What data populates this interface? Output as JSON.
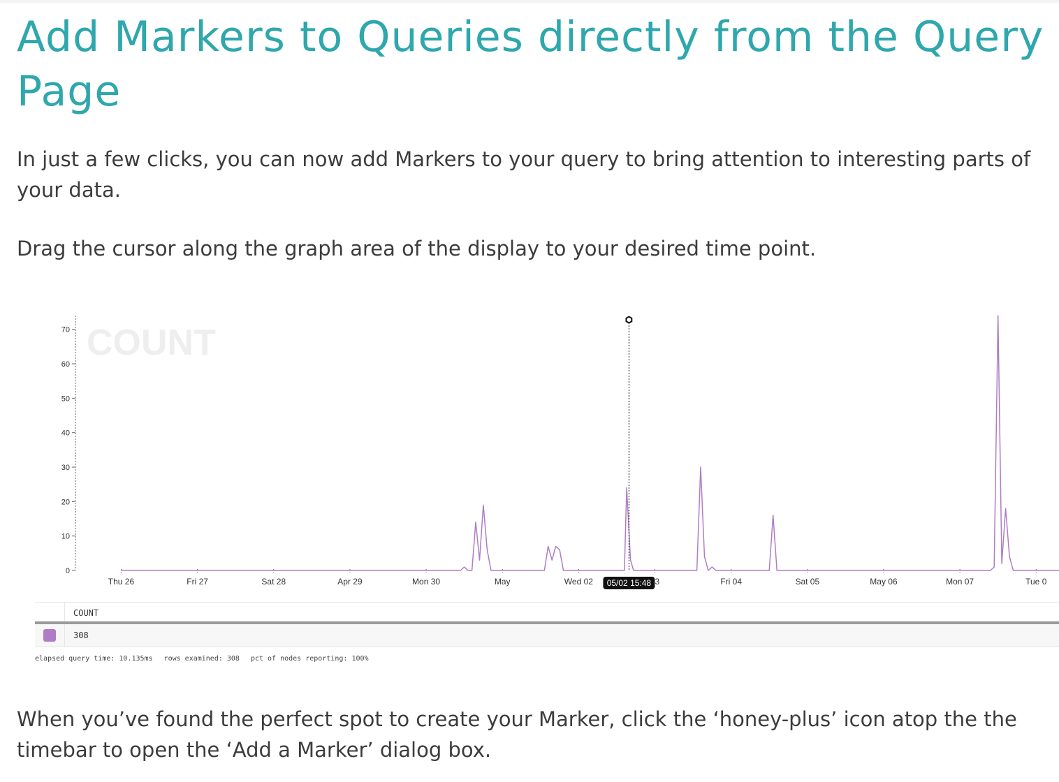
{
  "article": {
    "title": "Add Markers to Queries directly from the Query Page",
    "intro": "In just a few clicks, you can now add Markers to your query to bring attention to interesting parts of your data.",
    "drag_instruction": "Drag the cursor along the graph area of the display to your desired time point.",
    "outro": "When you’ve found the perfect spot to create your Marker, click the ‘honey-plus’ icon atop the the timebar to open the ‘Add a Marker’ dialog box."
  },
  "colors": {
    "title": "#2ea7ad",
    "series": "#b07cc6",
    "watermark": "#eeeeee"
  },
  "chart_data": {
    "type": "line",
    "title": "COUNT",
    "y_ticks": [
      0,
      10,
      20,
      30,
      40,
      50,
      60,
      70
    ],
    "ylim": [
      0,
      74
    ],
    "x_ticks": [
      "Thu 26",
      "Fri 27",
      "Sat 28",
      "Apr 29",
      "Mon 30",
      "May",
      "Wed 02",
      "03",
      "Fri 04",
      "Sat 05",
      "May 06",
      "Mon 07",
      "Tue 0"
    ],
    "x_range_days": [
      -0.6,
      12.3
    ],
    "series": [
      {
        "name": "COUNT",
        "points": [
          [
            0,
            0
          ],
          [
            4.45,
            0
          ],
          [
            4.5,
            1
          ],
          [
            4.55,
            0
          ],
          [
            4.6,
            0
          ],
          [
            4.65,
            14
          ],
          [
            4.7,
            3
          ],
          [
            4.75,
            19
          ],
          [
            4.8,
            6
          ],
          [
            4.85,
            0
          ],
          [
            5.55,
            0
          ],
          [
            5.6,
            7
          ],
          [
            5.65,
            3
          ],
          [
            5.7,
            7
          ],
          [
            5.75,
            6
          ],
          [
            5.8,
            0
          ],
          [
            6.6,
            0
          ],
          [
            6.63,
            24
          ],
          [
            6.68,
            3
          ],
          [
            6.72,
            0
          ],
          [
            7.55,
            0
          ],
          [
            7.6,
            30
          ],
          [
            7.65,
            4
          ],
          [
            7.7,
            0
          ],
          [
            7.75,
            1
          ],
          [
            7.8,
            0
          ],
          [
            8.5,
            0
          ],
          [
            8.55,
            16
          ],
          [
            8.6,
            0
          ],
          [
            11.4,
            0
          ],
          [
            11.45,
            1
          ],
          [
            11.5,
            74
          ],
          [
            11.55,
            2
          ],
          [
            11.6,
            18
          ],
          [
            11.65,
            4
          ],
          [
            11.7,
            0
          ],
          [
            12.3,
            0
          ]
        ]
      }
    ],
    "cursor": {
      "x_day": 6.66,
      "label": "05/02 15:48"
    }
  },
  "legend": {
    "header": "COUNT",
    "value": "308"
  },
  "stats": {
    "elapsed": "elapsed query time: 10.135ms",
    "rows": "rows examined: 308",
    "nodes": "pct of nodes reporting: 100%"
  }
}
